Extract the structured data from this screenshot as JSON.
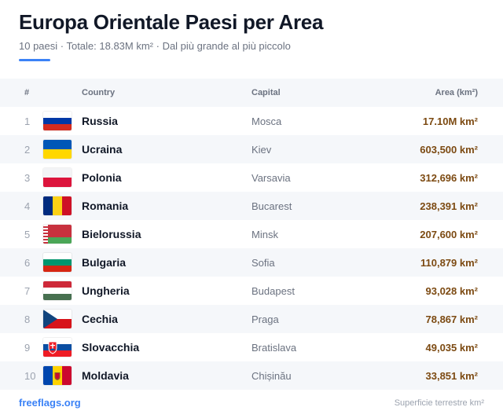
{
  "header": {
    "title": "Europa Orientale Paesi per Area",
    "subtitle": "10 paesi · Totale: 18.83M km² · Dal più grande al più piccolo"
  },
  "table": {
    "columns": {
      "num": "#",
      "country": "Country",
      "capital": "Capital",
      "area": "Area (km²)"
    },
    "rows": [
      {
        "rank": "1",
        "country": "Russia",
        "capital": "Mosca",
        "area": "17.10M km²",
        "flag": "russia-flag-icon"
      },
      {
        "rank": "2",
        "country": "Ucraina",
        "capital": "Kiev",
        "area": "603,500 km²",
        "flag": "ukraine-flag-icon"
      },
      {
        "rank": "3",
        "country": "Polonia",
        "capital": "Varsavia",
        "area": "312,696 km²",
        "flag": "poland-flag-icon"
      },
      {
        "rank": "4",
        "country": "Romania",
        "capital": "Bucarest",
        "area": "238,391 km²",
        "flag": "romania-flag-icon"
      },
      {
        "rank": "5",
        "country": "Bielorussia",
        "capital": "Minsk",
        "area": "207,600 km²",
        "flag": "belarus-flag-icon"
      },
      {
        "rank": "6",
        "country": "Bulgaria",
        "capital": "Sofia",
        "area": "110,879 km²",
        "flag": "bulgaria-flag-icon"
      },
      {
        "rank": "7",
        "country": "Ungheria",
        "capital": "Budapest",
        "area": "93,028 km²",
        "flag": "hungary-flag-icon"
      },
      {
        "rank": "8",
        "country": "Cechia",
        "capital": "Praga",
        "area": "78,867 km²",
        "flag": "czechia-flag-icon"
      },
      {
        "rank": "9",
        "country": "Slovacchia",
        "capital": "Bratislava",
        "area": "49,035 km²",
        "flag": "slovakia-flag-icon"
      },
      {
        "rank": "10",
        "country": "Moldavia",
        "capital": "Chișinău",
        "area": "33,851 km²",
        "flag": "moldova-flag-icon"
      }
    ]
  },
  "footer": {
    "brand": "freeflags.org",
    "note": "Superficie terrestre km²"
  },
  "colors": {
    "accent": "#3b82f6",
    "area_text": "#7c4a12",
    "row_alt": "#f5f7fa"
  }
}
